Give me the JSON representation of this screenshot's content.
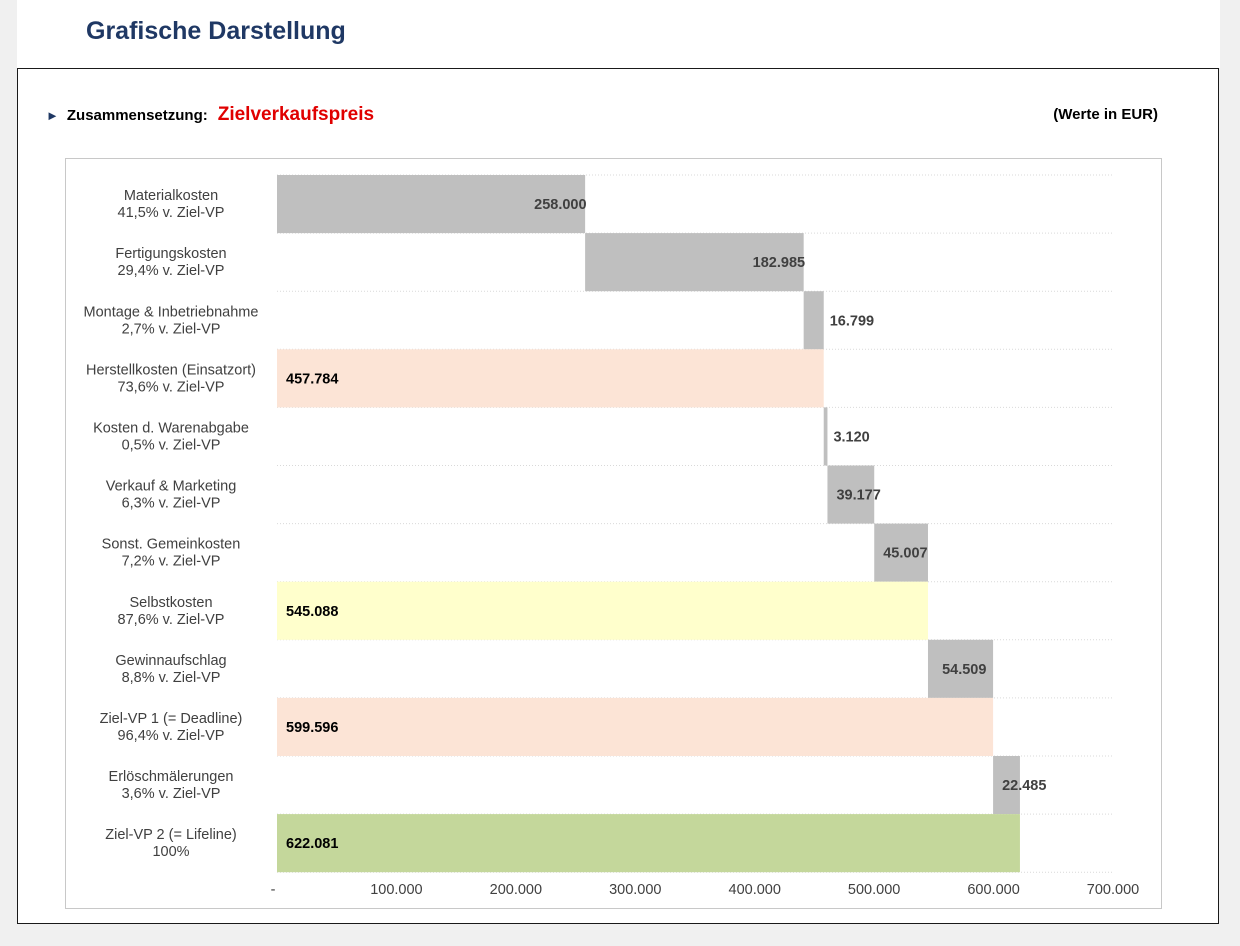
{
  "page": {
    "title": "Grafische Darstellung"
  },
  "panel": {
    "composition_label": "Zusammensetzung:",
    "composition_value": "Zielverkaufspreis",
    "units_note": "(Werte in EUR)",
    "arrow_icon": "triangle-right-icon"
  },
  "colors": {
    "title": "#1f3864",
    "highlight_red": "#e00000",
    "increment_bar": "#bfbfbf",
    "subtotal_peach": "#fce4d6",
    "subtotal_yellow": "#ffffcc",
    "total_green": "#c4d79b"
  },
  "chart_data": {
    "type": "bar",
    "orientation": "horizontal",
    "subtype": "waterfall",
    "xlim": [
      0,
      700000
    ],
    "xticks": [
      0,
      100000,
      200000,
      300000,
      400000,
      500000,
      600000,
      700000
    ],
    "xtick_labels": [
      "-",
      "100.000",
      "200.000",
      "300.000",
      "400.000",
      "500.000",
      "600.000",
      "700.000"
    ],
    "grid": "horizontal-dotted",
    "categories": [
      {
        "name": "Materialkosten",
        "share": "41,5% v. Ziel-VP",
        "start": 0,
        "value": 258000,
        "label": "258.000",
        "kind": "increment"
      },
      {
        "name": "Fertigungskosten",
        "share": "29,4% v. Ziel-VP",
        "start": 258000,
        "value": 182985,
        "label": "182.985",
        "kind": "increment"
      },
      {
        "name": "Montage & Inbetriebnahme",
        "share": "2,7% v. Ziel-VP",
        "start": 440985,
        "value": 16799,
        "label": "16.799",
        "kind": "increment"
      },
      {
        "name": "Herstellkosten (Einsatzort)",
        "share": "73,6% v. Ziel-VP",
        "start": 0,
        "value": 457784,
        "label": "457.784",
        "kind": "subtotal_peach"
      },
      {
        "name": "Kosten d. Warenabgabe",
        "share": "0,5% v. Ziel-VP",
        "start": 457784,
        "value": 3120,
        "label": "3.120",
        "kind": "increment"
      },
      {
        "name": "Verkauf & Marketing",
        "share": "6,3% v. Ziel-VP",
        "start": 460904,
        "value": 39177,
        "label": "39.177",
        "kind": "increment"
      },
      {
        "name": "Sonst. Gemeinkosten",
        "share": "7,2% v. Ziel-VP",
        "start": 500081,
        "value": 45007,
        "label": "45.007",
        "kind": "increment"
      },
      {
        "name": "Selbstkosten",
        "share": "87,6% v. Ziel-VP",
        "start": 0,
        "value": 545088,
        "label": "545.088",
        "kind": "subtotal_yellow"
      },
      {
        "name": "Gewinnaufschlag",
        "share": "8,8% v. Ziel-VP",
        "start": 545088,
        "value": 54509,
        "label": "54.509",
        "kind": "increment"
      },
      {
        "name": "Ziel-VP 1 (= Deadline)",
        "share": "96,4% v. Ziel-VP",
        "start": 0,
        "value": 599596,
        "label": "599.596",
        "kind": "subtotal_peach"
      },
      {
        "name": "Erlöschmälerungen",
        "share": "3,6% v. Ziel-VP",
        "start": 599596,
        "value": 22485,
        "label": "22.485",
        "kind": "increment"
      },
      {
        "name": "Ziel-VP 2 (= Lifeline)",
        "share": "100%",
        "start": 0,
        "value": 622081,
        "label": "622.081",
        "kind": "total_green"
      }
    ]
  }
}
